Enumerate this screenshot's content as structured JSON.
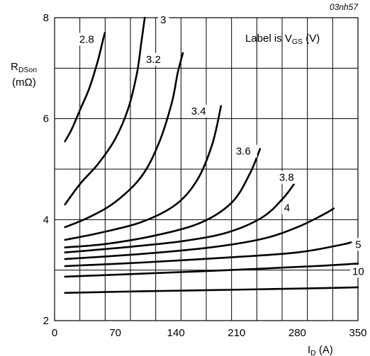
{
  "chart_data": {
    "type": "line",
    "figure_id": "03nh57",
    "ylabel_main": "R",
    "ylabel_sub": "DSon",
    "ylabel_unit": "(mΩ)",
    "xlabel_main": "I",
    "xlabel_sub": "D",
    "xlabel_unit": " (A)",
    "legend_main": "Label is V",
    "legend_sub": "GS",
    "legend_unit": " (V)",
    "legend_position": "top-right",
    "xlim": [
      0,
      350
    ],
    "ylim": [
      2,
      8
    ],
    "xticks": [
      "0",
      "70",
      "140",
      "210",
      "280",
      "350"
    ],
    "yticks": [
      "2",
      "4",
      "6",
      "8"
    ],
    "grid": true,
    "series": [
      {
        "name": "2.8",
        "x": [
          12,
          20,
          30,
          40,
          50,
          55,
          58
        ],
        "y": [
          5.55,
          5.8,
          6.2,
          6.6,
          7.15,
          7.5,
          7.7
        ]
      },
      {
        "name": "3",
        "x": [
          12,
          30,
          50,
          70,
          85,
          95,
          100,
          104
        ],
        "y": [
          4.3,
          4.72,
          5.1,
          5.6,
          6.2,
          6.9,
          7.5,
          8.0
        ]
      },
      {
        "name": "3.2",
        "x": [
          12,
          40,
          70,
          100,
          120,
          135,
          142,
          148
        ],
        "y": [
          3.85,
          4.05,
          4.35,
          4.85,
          5.5,
          6.3,
          6.9,
          7.3
        ]
      },
      {
        "name": "3.4",
        "x": [
          12,
          50,
          100,
          140,
          165,
          182,
          192
        ],
        "y": [
          3.6,
          3.73,
          3.95,
          4.3,
          4.8,
          5.5,
          6.25
        ]
      },
      {
        "name": "3.6",
        "x": [
          12,
          60,
          120,
          170,
          205,
          225,
          237
        ],
        "y": [
          3.45,
          3.52,
          3.7,
          3.95,
          4.35,
          4.9,
          5.4
        ]
      },
      {
        "name": "3.8",
        "x": [
          12,
          80,
          150,
          200,
          240,
          265,
          282
        ],
        "y": [
          3.35,
          3.45,
          3.58,
          3.75,
          4.05,
          4.45,
          4.85
        ]
      },
      {
        "name": "4",
        "x": [
          12,
          100,
          180,
          240,
          280,
          310,
          322
        ],
        "y": [
          3.22,
          3.32,
          3.45,
          3.62,
          3.85,
          4.1,
          4.22
        ]
      },
      {
        "name": "5",
        "x": [
          12,
          100,
          200,
          280,
          330,
          342
        ],
        "y": [
          3.08,
          3.15,
          3.25,
          3.35,
          3.5,
          3.55
        ]
      },
      {
        "name": "10",
        "x": [
          12,
          100,
          200,
          300,
          350
        ],
        "y": [
          2.87,
          2.93,
          3.0,
          3.08,
          3.13
        ]
      },
      {
        "name": "",
        "x": [
          12,
          100,
          200,
          300,
          350
        ],
        "y": [
          2.55,
          2.58,
          2.61,
          2.64,
          2.66
        ]
      }
    ]
  }
}
